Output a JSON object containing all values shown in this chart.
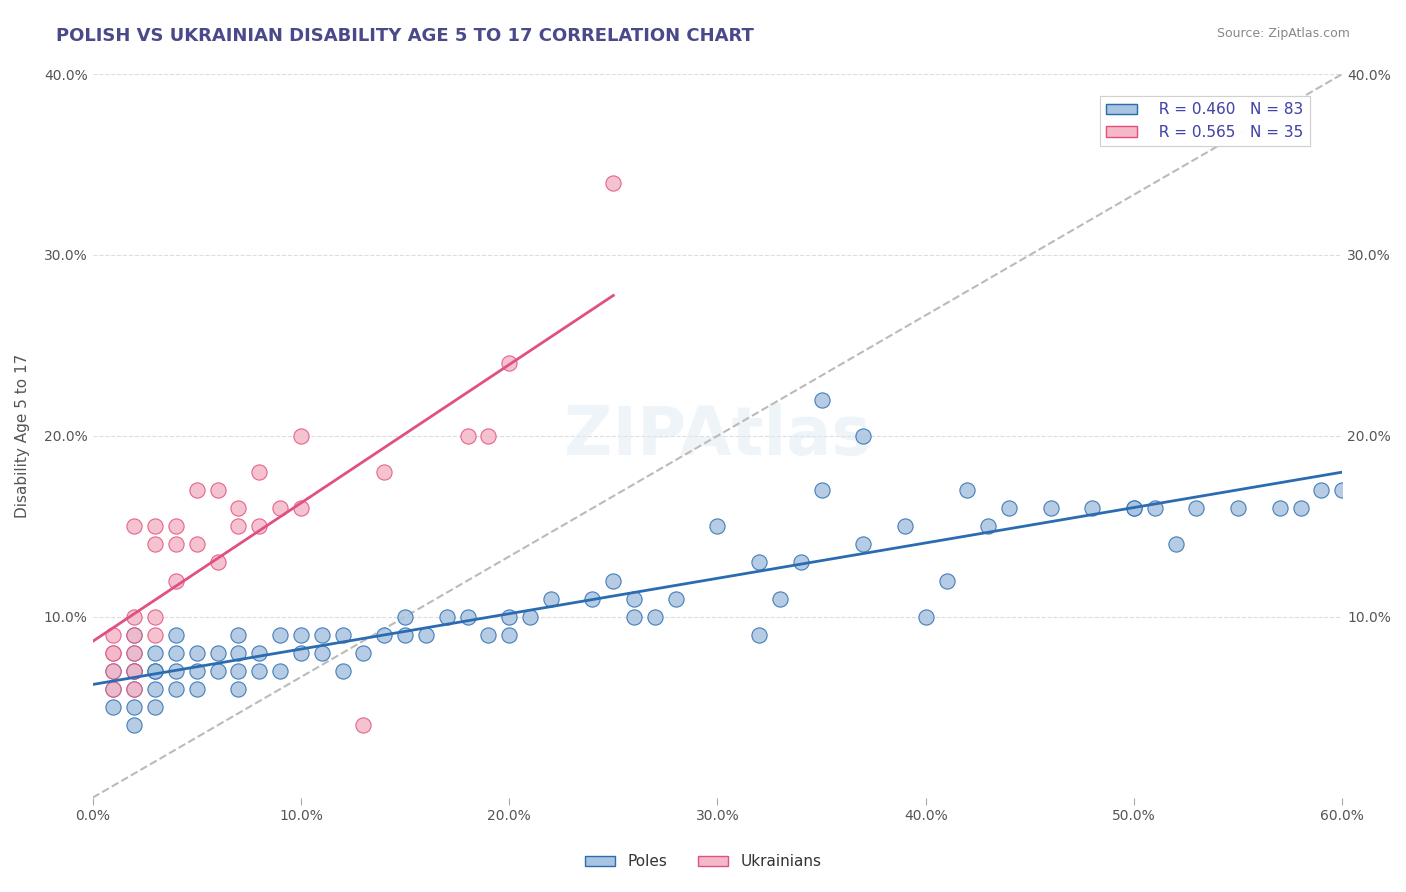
{
  "title": "POLISH VS UKRAINIAN DISABILITY AGE 5 TO 17 CORRELATION CHART",
  "source": "Source: ZipAtlas.com",
  "xlabel": "",
  "ylabel": "Disability Age 5 to 17",
  "xlim": [
    0.0,
    0.6
  ],
  "ylim": [
    0.0,
    0.4
  ],
  "xticks": [
    0.0,
    0.1,
    0.2,
    0.3,
    0.4,
    0.5,
    0.6
  ],
  "yticks": [
    0.0,
    0.1,
    0.2,
    0.3,
    0.4
  ],
  "poles_R": 0.46,
  "poles_N": 83,
  "ukr_R": 0.565,
  "ukr_N": 35,
  "poles_color": "#a8c4e0",
  "poles_line_color": "#2b6cb0",
  "ukr_color": "#f4b8c8",
  "ukr_line_color": "#e05080",
  "poles_x": [
    0.01,
    0.01,
    0.01,
    0.02,
    0.02,
    0.02,
    0.02,
    0.02,
    0.02,
    0.02,
    0.03,
    0.03,
    0.03,
    0.03,
    0.03,
    0.04,
    0.04,
    0.04,
    0.04,
    0.05,
    0.05,
    0.05,
    0.06,
    0.06,
    0.07,
    0.07,
    0.07,
    0.07,
    0.08,
    0.08,
    0.09,
    0.09,
    0.1,
    0.1,
    0.11,
    0.11,
    0.12,
    0.12,
    0.13,
    0.14,
    0.15,
    0.15,
    0.16,
    0.17,
    0.18,
    0.19,
    0.2,
    0.2,
    0.21,
    0.22,
    0.24,
    0.25,
    0.26,
    0.26,
    0.27,
    0.28,
    0.3,
    0.32,
    0.32,
    0.33,
    0.34,
    0.35,
    0.35,
    0.37,
    0.37,
    0.39,
    0.4,
    0.41,
    0.42,
    0.43,
    0.44,
    0.46,
    0.48,
    0.5,
    0.5,
    0.51,
    0.52,
    0.53,
    0.55,
    0.57,
    0.58,
    0.59,
    0.6
  ],
  "poles_y": [
    0.05,
    0.06,
    0.07,
    0.04,
    0.05,
    0.06,
    0.07,
    0.07,
    0.08,
    0.09,
    0.05,
    0.06,
    0.07,
    0.07,
    0.08,
    0.06,
    0.07,
    0.08,
    0.09,
    0.06,
    0.07,
    0.08,
    0.07,
    0.08,
    0.06,
    0.07,
    0.08,
    0.09,
    0.07,
    0.08,
    0.07,
    0.09,
    0.08,
    0.09,
    0.08,
    0.09,
    0.07,
    0.09,
    0.08,
    0.09,
    0.09,
    0.1,
    0.09,
    0.1,
    0.1,
    0.09,
    0.09,
    0.1,
    0.1,
    0.11,
    0.11,
    0.12,
    0.1,
    0.11,
    0.1,
    0.11,
    0.15,
    0.09,
    0.13,
    0.11,
    0.13,
    0.17,
    0.22,
    0.14,
    0.2,
    0.15,
    0.1,
    0.12,
    0.17,
    0.15,
    0.16,
    0.16,
    0.16,
    0.16,
    0.16,
    0.16,
    0.14,
    0.16,
    0.16,
    0.16,
    0.16,
    0.17,
    0.17
  ],
  "ukr_x": [
    0.01,
    0.01,
    0.01,
    0.01,
    0.01,
    0.02,
    0.02,
    0.02,
    0.02,
    0.02,
    0.02,
    0.03,
    0.03,
    0.03,
    0.03,
    0.04,
    0.04,
    0.04,
    0.05,
    0.05,
    0.06,
    0.06,
    0.07,
    0.07,
    0.08,
    0.08,
    0.09,
    0.1,
    0.1,
    0.13,
    0.14,
    0.18,
    0.19,
    0.2,
    0.25
  ],
  "ukr_y": [
    0.06,
    0.07,
    0.08,
    0.08,
    0.09,
    0.06,
    0.07,
    0.08,
    0.09,
    0.1,
    0.15,
    0.09,
    0.1,
    0.14,
    0.15,
    0.12,
    0.14,
    0.15,
    0.14,
    0.17,
    0.13,
    0.17,
    0.15,
    0.16,
    0.15,
    0.18,
    0.16,
    0.16,
    0.2,
    0.04,
    0.18,
    0.2,
    0.2,
    0.24,
    0.34
  ]
}
